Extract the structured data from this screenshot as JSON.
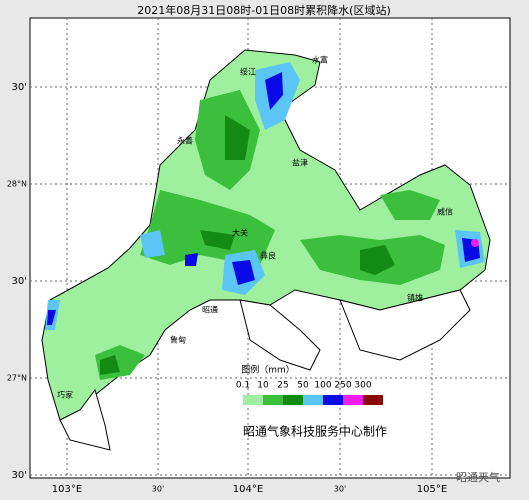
{
  "title": "2021年08月31日08时-01日08时累积降水(区域站)",
  "lon_labels": [
    "103°E",
    "30'",
    "104°E",
    "30'",
    "105°E"
  ],
  "lat_labels": [
    "30'",
    "28°N",
    "30'",
    "27°N",
    "30'"
  ],
  "places": [
    "绥江",
    "水富",
    "永善",
    "盐津",
    "大关",
    "彝良",
    "威信",
    "镇雄",
    "昭通",
    "鲁甸",
    "巧家"
  ],
  "legend": {
    "title": "图例（mm）",
    "labels": [
      "0.1",
      "10",
      "25",
      "50",
      "100",
      "250",
      "300"
    ],
    "colors": [
      "#9ef09e",
      "#3cbf3c",
      "#138a13",
      "#5bc6f5",
      "#0a0ae6",
      "#f01ef0",
      "#8c0a0a"
    ]
  },
  "credit": "昭通气象科技服务中心制作",
  "watermark": "昭通天气"
}
